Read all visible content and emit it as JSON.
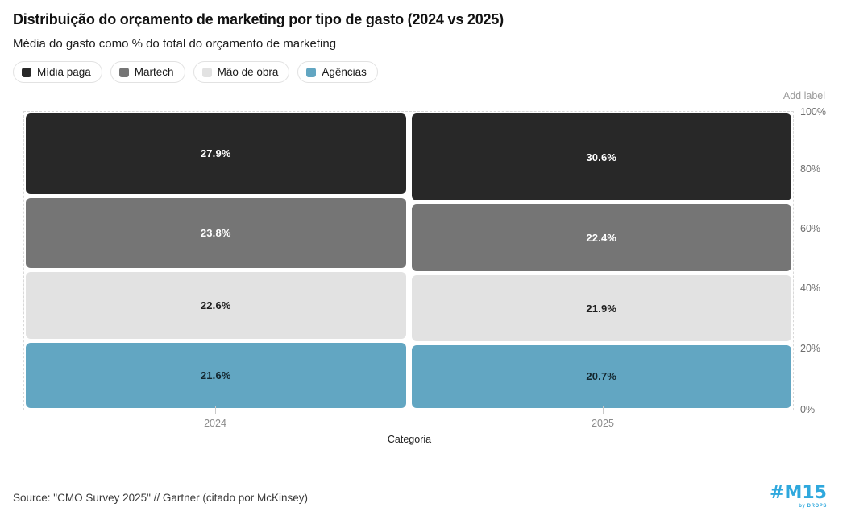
{
  "header": {
    "title": "Distribuição do orçamento de marketing por tipo de gasto (2024 vs 2025)",
    "subtitle": "Média do gasto como % do total do orçamento de marketing"
  },
  "legend": {
    "items": [
      {
        "label": "Mídia paga",
        "color": "#282828"
      },
      {
        "label": "Martech",
        "color": "#757575"
      },
      {
        "label": "Mão de obra",
        "color": "#e2e2e2"
      },
      {
        "label": "Agências",
        "color": "#62a6c2"
      }
    ]
  },
  "chart_data": {
    "type": "bar",
    "stacked": true,
    "normalized_to_100": true,
    "categories": [
      "2024",
      "2025"
    ],
    "series": [
      {
        "name": "Mídia paga",
        "color": "#282828",
        "text_color": "#ffffff",
        "values": [
          27.9,
          30.6
        ],
        "labels": [
          "27.9%",
          "30.6%"
        ]
      },
      {
        "name": "Martech",
        "color": "#757575",
        "text_color": "#ffffff",
        "values": [
          23.8,
          22.4
        ],
        "labels": [
          "23.8%",
          "22.4%"
        ]
      },
      {
        "name": "Mão de obra",
        "color": "#e2e2e2",
        "text_color": "#1f1f1f",
        "values": [
          22.6,
          21.9
        ],
        "labels": [
          "22.6%",
          "21.9%"
        ]
      },
      {
        "name": "Agências",
        "color": "#62a6c2",
        "text_color": "#13262e",
        "values": [
          21.6,
          20.7
        ],
        "labels": [
          "21.6%",
          "20.7%"
        ]
      }
    ],
    "xlabel": "Categoria",
    "ylabel": "",
    "ylim": [
      0,
      100
    ],
    "y_ticks": [
      "100%",
      "80%",
      "60%",
      "40%",
      "20%",
      "0%"
    ],
    "y_axis_side": "right",
    "grid": false,
    "legend_position": "top-left",
    "add_label_hint": "Add label"
  },
  "footer": {
    "source": "Source: \"CMO Survey 2025\" // Gartner (citado por McKinsey)",
    "logo": {
      "text": "#M15",
      "sub": "by DROPS",
      "color": "#2fa8dd"
    }
  }
}
